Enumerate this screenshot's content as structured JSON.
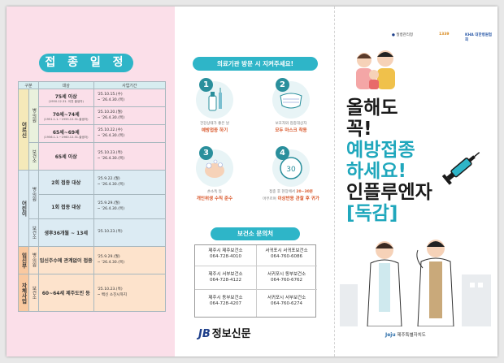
{
  "left": {
    "title": "접 종 일 정",
    "headers": [
      "구분",
      "대상",
      "사업기간"
    ],
    "groups": [
      {
        "name": "어르신",
        "subs": [
          {
            "name": "병·의원",
            "rows": [
              {
                "target": "75세 이상",
                "detail": "(1950.12.31. 이전 출생자)",
                "start": "'25.10.15.(수)",
                "end": "~ '26.4.30.(목)"
              },
              {
                "target": "70세~74세",
                "detail": "(1951.1.1.~1955.12.31.출생자)",
                "start": "'25.10.20.(월)",
                "end": "~ '26.4.30.(목)"
              },
              {
                "target": "65세~69세",
                "detail": "(1956.1.1.~1960.12.31.출생자)",
                "start": "'25.10.22.(수)",
                "end": "~ '26.4.30.(목)"
              }
            ]
          },
          {
            "name": "보건소",
            "rows": [
              {
                "target": "65세 이상",
                "detail": "",
                "start": "'25.10.23.(목)",
                "end": "~ '26.4.30.(목)"
              }
            ]
          }
        ]
      },
      {
        "name": "어린이",
        "subs": [
          {
            "name": "병·의원",
            "rows": [
              {
                "target": "2회 접종 대상",
                "detail": "",
                "start": "'25.9.22.(월)",
                "end": "~ '26.4.30.(목)"
              },
              {
                "target": "1회 접종 대상",
                "detail": "",
                "start": "'25.9.29.(월)",
                "end": "~ '26.4.30.(목)"
              }
            ]
          },
          {
            "name": "보건소",
            "rows": [
              {
                "target": "생후36개월 ~ 13세",
                "detail": "",
                "start": "'25.10.23.(목)",
                "end": ""
              }
            ]
          }
        ]
      },
      {
        "name": "임신부",
        "subs": [
          {
            "name": "병·의원",
            "rows": [
              {
                "target": "임신주수에 관계없이 접종",
                "detail": "",
                "start": "'25.9.29.(월)",
                "end": "~ '26.4.30.(목)"
              }
            ]
          }
        ]
      },
      {
        "name": "자체사업",
        "subs": [
          {
            "name": "보건소",
            "rows": [
              {
                "target": "60~64세 제주도민 등",
                "detail": "",
                "start": "'25.10.23.(목)",
                "end": "~ 백신 소진시까지"
              }
            ]
          }
        ]
      }
    ]
  },
  "mid": {
    "visit_title": "의료기관 방문 시 지켜주세요!",
    "tips": [
      {
        "num": "1",
        "l1": "건강상태가 좋은 날",
        "l2a": "예방접종 하기",
        "l2b": ""
      },
      {
        "num": "2",
        "l1": "보호자와 접종대상자",
        "l2a": "모두 마스크 착용",
        "l2b": ""
      },
      {
        "num": "3",
        "l1": "손소독 등",
        "l2a": "개인위생 수칙 준수",
        "l2b": ""
      },
      {
        "num": "4",
        "l1": "접종 후 현장에서",
        "l1b": "20~30분",
        "l2a": "머무르며",
        "l2b": "이상반응 관찰 후 귀가"
      }
    ],
    "clock_label": "30",
    "clinic_title": "보건소 문의처",
    "clinics": [
      {
        "name": "제주시 제주보건소",
        "tel": "064-728-4010"
      },
      {
        "name": "서귀포시 서귀포보건소",
        "tel": "064-760-6086"
      },
      {
        "name": "제주시 서부보건소",
        "tel": "064-728-4122"
      },
      {
        "name": "서귀포시 동부보건소",
        "tel": "064-760-6762"
      },
      {
        "name": "제주시 동부보건소",
        "tel": "064-728-4207"
      },
      {
        "name": "서귀포시 서부보건소",
        "tel": "064-760-6274"
      }
    ]
  },
  "watermark": {
    "jb": "JB",
    "name": "정보신문"
  },
  "right": {
    "logos": [
      "질병관리청",
      "1339",
      "KHA 대한병원협회"
    ],
    "headline": [
      "올해도",
      "꼭!",
      "예방접종",
      "하세요!",
      "인플루엔자",
      "[독감]"
    ],
    "footer_mark": "Jeju",
    "footer_text": "제주특별자치도"
  },
  "colors": {
    "teal": "#2eb5c8",
    "pink": "#fbdfe9",
    "headline_teal": "#1fa7bc"
  }
}
